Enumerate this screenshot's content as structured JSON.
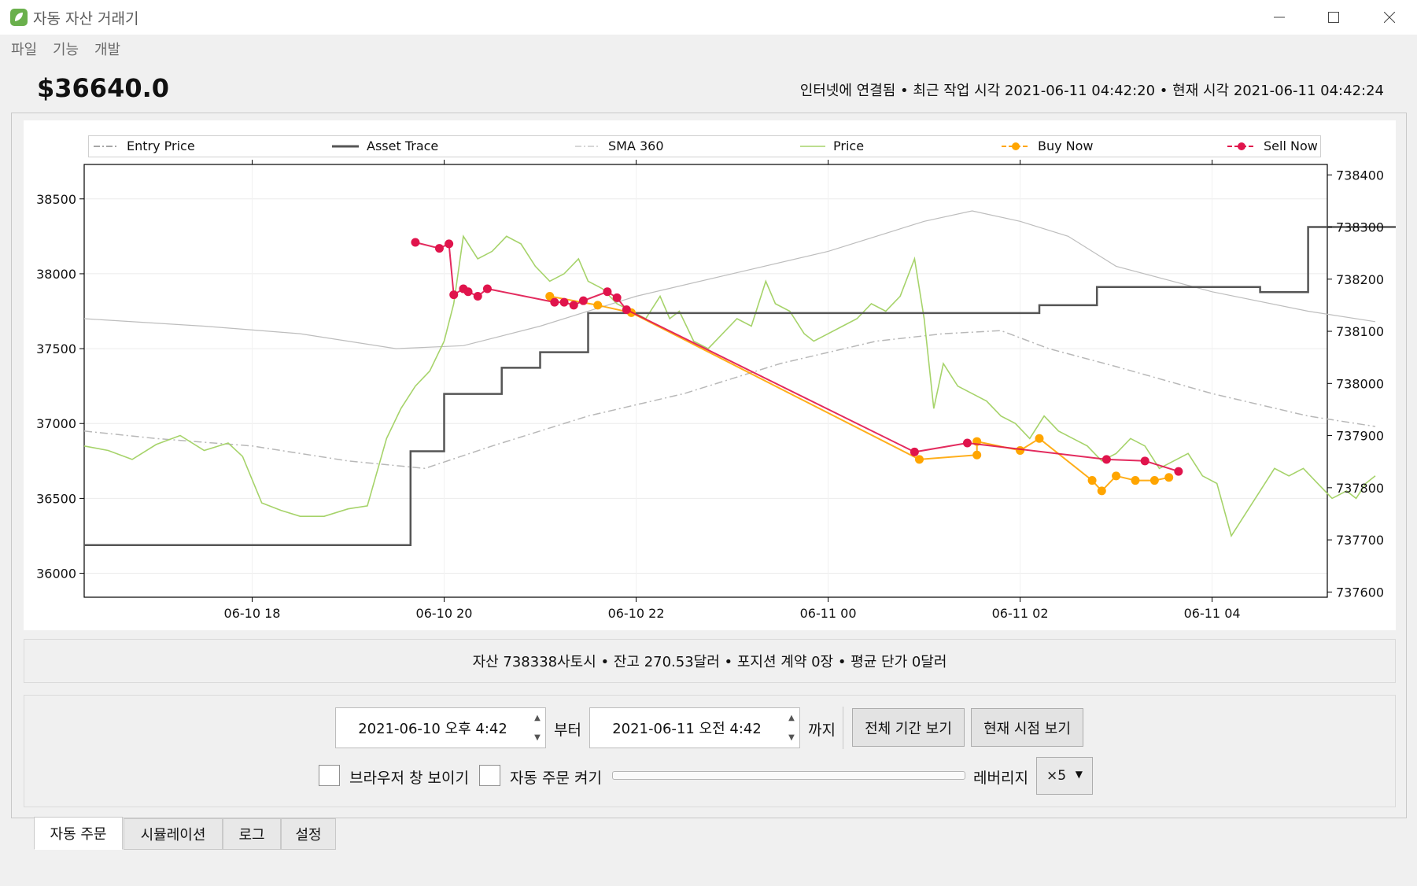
{
  "window": {
    "title": "자동 자산 거래기",
    "minimize_icon": "minimize-icon",
    "maximize_icon": "maximize-icon",
    "close_icon": "close-icon"
  },
  "menu": [
    "파일",
    "기능",
    "개발"
  ],
  "header": {
    "price": "$36640.0",
    "status": "인터넷에 연결됨 • 최근 작업 시각 2021-06-11 04:42:20 • 현재 시각 2021-06-11 04:42:24"
  },
  "legend": [
    "Entry Price",
    "Asset Trace",
    "SMA 360",
    "Price",
    "Buy Now",
    "Sell Now"
  ],
  "colors": {
    "price": "#a6d36a",
    "asset": "#555555",
    "sma": "#bdbdbd",
    "entry": "#b8b8b8",
    "buy": "#ffa500",
    "sell": "#e0144c"
  },
  "chart_data": {
    "type": "line",
    "x_ticks": [
      "06-10 18",
      "06-10 20",
      "06-10 22",
      "06-11 00",
      "06-11 02",
      "06-11 04"
    ],
    "x_tick_hours": [
      18,
      20,
      22,
      24,
      26,
      28
    ],
    "x_range_hours": [
      16.25,
      29.2
    ],
    "y_left": {
      "ticks": [
        36000,
        36500,
        37000,
        37500,
        38000,
        38500
      ],
      "range": [
        35840,
        38730
      ]
    },
    "y_right": {
      "ticks": [
        737600,
        737700,
        737800,
        737900,
        738000,
        738100,
        738200,
        738300,
        738400
      ],
      "range": [
        737590,
        738420
      ]
    },
    "series": [
      {
        "name": "Price",
        "axis": "left",
        "points": [
          [
            16.25,
            36850
          ],
          [
            16.5,
            36820
          ],
          [
            16.75,
            36760
          ],
          [
            17.0,
            36860
          ],
          [
            17.25,
            36920
          ],
          [
            17.5,
            36820
          ],
          [
            17.75,
            36870
          ],
          [
            17.9,
            36780
          ],
          [
            18.1,
            36470
          ],
          [
            18.3,
            36420
          ],
          [
            18.5,
            36380
          ],
          [
            18.75,
            36380
          ],
          [
            19.0,
            36430
          ],
          [
            19.2,
            36450
          ],
          [
            19.4,
            36900
          ],
          [
            19.55,
            37100
          ],
          [
            19.7,
            37250
          ],
          [
            19.85,
            37350
          ],
          [
            20.0,
            37550
          ],
          [
            20.1,
            37800
          ],
          [
            20.2,
            38250
          ],
          [
            20.35,
            38100
          ],
          [
            20.5,
            38150
          ],
          [
            20.65,
            38250
          ],
          [
            20.8,
            38200
          ],
          [
            20.95,
            38050
          ],
          [
            21.1,
            37950
          ],
          [
            21.25,
            38000
          ],
          [
            21.4,
            38100
          ],
          [
            21.5,
            37950
          ],
          [
            21.65,
            37900
          ],
          [
            21.8,
            37800
          ],
          [
            21.95,
            37750
          ],
          [
            22.1,
            37700
          ],
          [
            22.25,
            37850
          ],
          [
            22.35,
            37700
          ],
          [
            22.45,
            37750
          ],
          [
            22.6,
            37550
          ],
          [
            22.75,
            37500
          ],
          [
            22.9,
            37600
          ],
          [
            23.05,
            37700
          ],
          [
            23.2,
            37650
          ],
          [
            23.35,
            37950
          ],
          [
            23.45,
            37800
          ],
          [
            23.6,
            37750
          ],
          [
            23.75,
            37600
          ],
          [
            23.85,
            37550
          ],
          [
            24.0,
            37600
          ],
          [
            24.15,
            37650
          ],
          [
            24.3,
            37700
          ],
          [
            24.45,
            37800
          ],
          [
            24.6,
            37750
          ],
          [
            24.75,
            37850
          ],
          [
            24.9,
            38100
          ],
          [
            25.0,
            37700
          ],
          [
            25.1,
            37100
          ],
          [
            25.2,
            37400
          ],
          [
            25.35,
            37250
          ],
          [
            25.5,
            37200
          ],
          [
            25.65,
            37150
          ],
          [
            25.8,
            37050
          ],
          [
            25.95,
            37000
          ],
          [
            26.1,
            36900
          ],
          [
            26.25,
            37050
          ],
          [
            26.4,
            36950
          ],
          [
            26.55,
            36900
          ],
          [
            26.7,
            36850
          ],
          [
            26.85,
            36750
          ],
          [
            27.0,
            36800
          ],
          [
            27.15,
            36900
          ],
          [
            27.3,
            36850
          ],
          [
            27.45,
            36700
          ],
          [
            27.6,
            36750
          ],
          [
            27.75,
            36800
          ],
          [
            27.9,
            36650
          ],
          [
            28.05,
            36600
          ],
          [
            28.2,
            36250
          ],
          [
            28.35,
            36400
          ],
          [
            28.5,
            36550
          ],
          [
            28.65,
            36700
          ],
          [
            28.8,
            36650
          ],
          [
            28.95,
            36700
          ],
          [
            29.1,
            36600
          ],
          [
            29.25,
            36500
          ],
          [
            29.4,
            36550
          ],
          [
            29.5,
            36500
          ],
          [
            29.6,
            36600
          ],
          [
            29.7,
            36650
          ]
        ]
      },
      {
        "name": "SMA 360",
        "axis": "left",
        "points": [
          [
            16.25,
            37700
          ],
          [
            17.5,
            37650
          ],
          [
            18.5,
            37600
          ],
          [
            19.5,
            37500
          ],
          [
            20.2,
            37520
          ],
          [
            21.0,
            37650
          ],
          [
            22.0,
            37850
          ],
          [
            23.0,
            38000
          ],
          [
            24.0,
            38150
          ],
          [
            25.0,
            38350
          ],
          [
            25.5,
            38420
          ],
          [
            26.0,
            38350
          ],
          [
            26.5,
            38250
          ],
          [
            27.0,
            38050
          ],
          [
            28.0,
            37880
          ],
          [
            29.0,
            37750
          ],
          [
            29.7,
            37680
          ]
        ]
      },
      {
        "name": "Entry Price",
        "axis": "left",
        "points": [
          [
            16.25,
            36950
          ],
          [
            17.0,
            36900
          ],
          [
            18.0,
            36850
          ],
          [
            19.0,
            36750
          ],
          [
            19.8,
            36700
          ],
          [
            20.5,
            36850
          ],
          [
            21.5,
            37050
          ],
          [
            22.5,
            37200
          ],
          [
            23.5,
            37400
          ],
          [
            24.5,
            37550
          ],
          [
            25.2,
            37600
          ],
          [
            25.8,
            37620
          ],
          [
            26.3,
            37500
          ],
          [
            27.0,
            37380
          ],
          [
            28.0,
            37200
          ],
          [
            29.0,
            37050
          ],
          [
            29.7,
            36980
          ]
        ]
      },
      {
        "name": "Asset Trace",
        "axis": "right",
        "points": [
          [
            16.25,
            737690
          ],
          [
            19.65,
            737690
          ],
          [
            19.65,
            737870
          ],
          [
            20.0,
            737870
          ],
          [
            20.0,
            737980
          ],
          [
            20.6,
            737980
          ],
          [
            20.6,
            738030
          ],
          [
            21.0,
            738030
          ],
          [
            21.0,
            738060
          ],
          [
            21.5,
            738060
          ],
          [
            21.5,
            738135
          ],
          [
            25.0,
            738135
          ],
          [
            26.2,
            738135
          ],
          [
            26.2,
            738150
          ],
          [
            26.8,
            738150
          ],
          [
            26.8,
            738185
          ],
          [
            28.5,
            738185
          ],
          [
            28.5,
            738175
          ],
          [
            29.0,
            738175
          ],
          [
            29.0,
            738300
          ],
          [
            30.3,
            738300
          ],
          [
            30.3,
            738335
          ],
          [
            30.6,
            738335
          ]
        ]
      },
      {
        "name": "Buy Now",
        "axis": "left",
        "points": [
          [
            21.1,
            37850
          ],
          [
            21.6,
            37790
          ],
          [
            21.95,
            37740
          ],
          [
            24.95,
            36760
          ],
          [
            25.55,
            36790
          ],
          [
            25.55,
            36880
          ],
          [
            26.0,
            36820
          ],
          [
            26.2,
            36900
          ],
          [
            26.75,
            36620
          ],
          [
            26.85,
            36550
          ],
          [
            27.0,
            36650
          ],
          [
            27.2,
            36620
          ],
          [
            27.4,
            36620
          ],
          [
            27.55,
            36640
          ]
        ]
      },
      {
        "name": "Sell Now",
        "axis": "left",
        "points": [
          [
            19.7,
            38210
          ],
          [
            19.95,
            38170
          ],
          [
            20.05,
            38200
          ],
          [
            20.1,
            37860
          ],
          [
            20.2,
            37900
          ],
          [
            20.25,
            37880
          ],
          [
            20.35,
            37850
          ],
          [
            20.45,
            37900
          ],
          [
            21.15,
            37810
          ],
          [
            21.25,
            37810
          ],
          [
            21.35,
            37790
          ],
          [
            21.45,
            37820
          ],
          [
            21.7,
            37880
          ],
          [
            21.8,
            37840
          ],
          [
            21.9,
            37760
          ],
          [
            24.9,
            36810
          ],
          [
            25.45,
            36870
          ],
          [
            26.9,
            36760
          ],
          [
            27.3,
            36750
          ],
          [
            27.65,
            36680
          ]
        ]
      }
    ]
  },
  "info": "자산 738338사토시 • 잔고 270.53달러 • 포지션 계약 0장 • 평균 단가 0달러",
  "controls": {
    "start_date": "2021-06-10 오후 4:42",
    "from_label": "부터",
    "end_date": "2021-06-11 오전 4:42",
    "to_label": "까지",
    "full_period_button": "전체 기간 보기",
    "current_time_button": "현재 시점 보기",
    "browser_checkbox_label": "브라우저 창 보이기",
    "auto_order_checkbox_label": "자동 주문 켜기",
    "leverage_label": "레버리지",
    "leverage_value": "×5"
  },
  "tabs": [
    "자동 주문",
    "시뮬레이션",
    "로그",
    "설정"
  ]
}
